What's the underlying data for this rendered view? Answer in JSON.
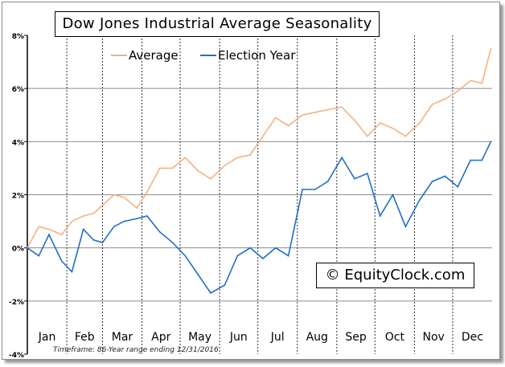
{
  "chart_data": {
    "type": "line",
    "title": "Dow Jones Industrial Average Seasonality",
    "ylim": [
      -4,
      8
    ],
    "yticks": [
      "8%",
      "6%",
      "4%",
      "2%",
      "0%",
      "-2%",
      "-4%"
    ],
    "yticks_values": [
      8,
      6,
      4,
      2,
      0,
      -2,
      -4
    ],
    "categories": [
      "Jan",
      "Feb",
      "Mar",
      "Apr",
      "May",
      "Jun",
      "Jul",
      "Aug",
      "Sep",
      "Oct",
      "Nov",
      "Dec"
    ],
    "grid": {
      "horizontal": "solid",
      "vertical": "dashed at month boundaries"
    },
    "legend_placement": "top",
    "x": [
      "01-01",
      "01-10",
      "01-18",
      "01-28",
      "02-05",
      "02-14",
      "02-22",
      "03-01",
      "03-10",
      "03-18",
      "03-28",
      "04-05",
      "04-15",
      "04-25",
      "05-05",
      "05-15",
      "05-25",
      "06-05",
      "06-15",
      "06-25",
      "07-05",
      "07-15",
      "07-25",
      "08-05",
      "08-15",
      "08-25",
      "09-05",
      "09-15",
      "09-25",
      "10-05",
      "10-15",
      "10-25",
      "11-05",
      "11-15",
      "11-25",
      "12-05",
      "12-15",
      "12-24",
      "12-31"
    ],
    "series": [
      {
        "name": "Average",
        "color": "#f4b183",
        "values": [
          0,
          0.8,
          0.7,
          0.5,
          1.0,
          1.2,
          1.3,
          1.6,
          2.0,
          1.9,
          1.5,
          2.1,
          3.0,
          3.0,
          3.4,
          2.9,
          2.6,
          3.1,
          3.4,
          3.5,
          4.2,
          4.9,
          4.6,
          5.0,
          5.1,
          5.2,
          5.3,
          4.8,
          4.2,
          4.7,
          4.5,
          4.2,
          4.7,
          5.4,
          5.6,
          5.9,
          6.3,
          6.2,
          7.5
        ]
      },
      {
        "name": "Election Year",
        "color": "#1f6fc6",
        "values": [
          0,
          -0.3,
          0.5,
          -0.5,
          -0.9,
          0.7,
          0.3,
          0.2,
          0.8,
          1.0,
          1.1,
          1.2,
          0.6,
          0.2,
          -0.3,
          -1.0,
          -1.7,
          -1.4,
          -0.3,
          0,
          -0.4,
          0,
          -0.3,
          2.2,
          2.2,
          2.5,
          3.4,
          2.6,
          2.8,
          1.2,
          2.0,
          0.8,
          1.8,
          2.5,
          2.7,
          2.3,
          3.3,
          3.3,
          4.0
        ]
      }
    ]
  },
  "watermark": "© EquityClock.com",
  "footnote": "Timeframe: 86-Year range ending 12/31/2016"
}
